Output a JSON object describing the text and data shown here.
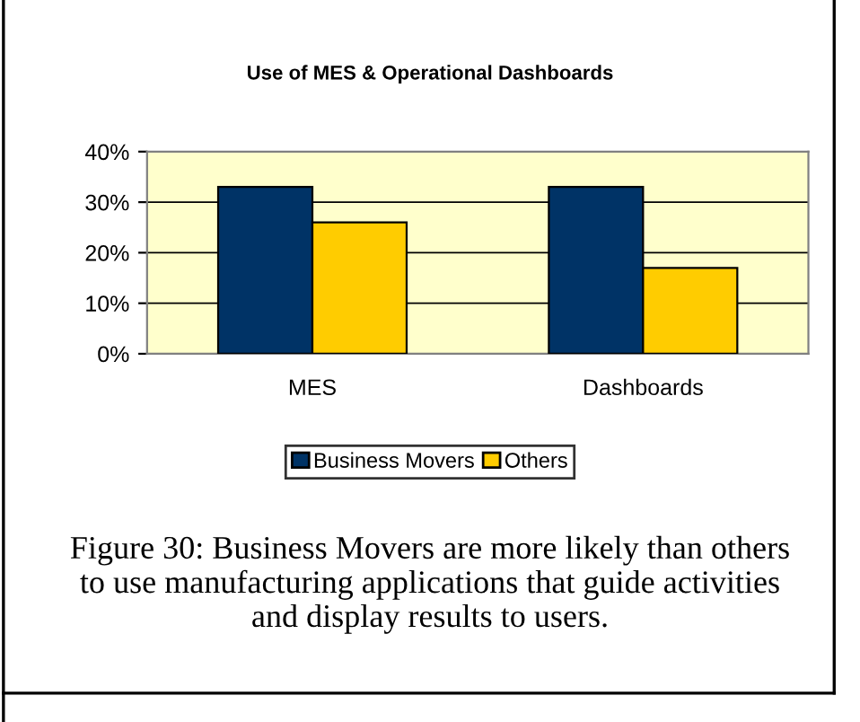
{
  "chart_data": {
    "type": "bar",
    "title": "Use of MES & Operational Dashboards",
    "categories": [
      "MES",
      "Dashboards"
    ],
    "series": [
      {
        "name": "Business Movers",
        "color": "#003366",
        "values": [
          33,
          33
        ]
      },
      {
        "name": "Others",
        "color": "#ffcc00",
        "values": [
          26,
          17
        ]
      }
    ],
    "ylim": [
      0,
      40
    ],
    "yticks": [
      {
        "value": 0,
        "label": "0%"
      },
      {
        "value": 10,
        "label": "10%"
      },
      {
        "value": 20,
        "label": "20%"
      },
      {
        "value": 30,
        "label": "30%"
      },
      {
        "value": 40,
        "label": "40%"
      }
    ],
    "grid": "y",
    "legend": "bottom",
    "annotations": [
      "Figure 30: Business Movers are more likely than others to use manufacturing applications that guide activities and display results to users."
    ]
  }
}
